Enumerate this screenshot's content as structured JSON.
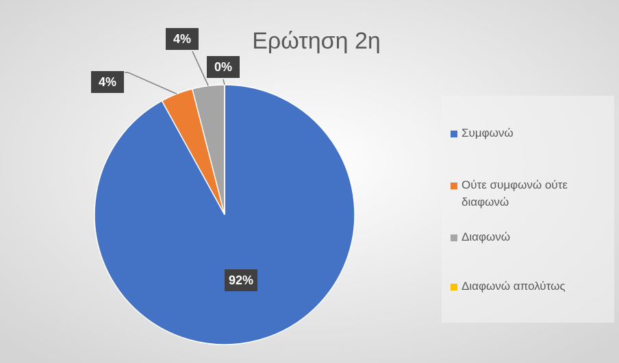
{
  "chart_data": {
    "type": "pie",
    "title": "Ερώτηση 2η",
    "categories": [
      "Συμφωνώ",
      "Ούτε συμφωνώ ούτε διαφωνώ",
      "Διαφωνώ",
      "Διαφωνώ απολύτως"
    ],
    "values": [
      92,
      4,
      4,
      0
    ],
    "value_labels": [
      "92%",
      "4%",
      "4%",
      "0%"
    ],
    "colors": [
      "#4472c4",
      "#ed7d31",
      "#a5a5a5",
      "#ffc000"
    ],
    "legend": "right"
  }
}
